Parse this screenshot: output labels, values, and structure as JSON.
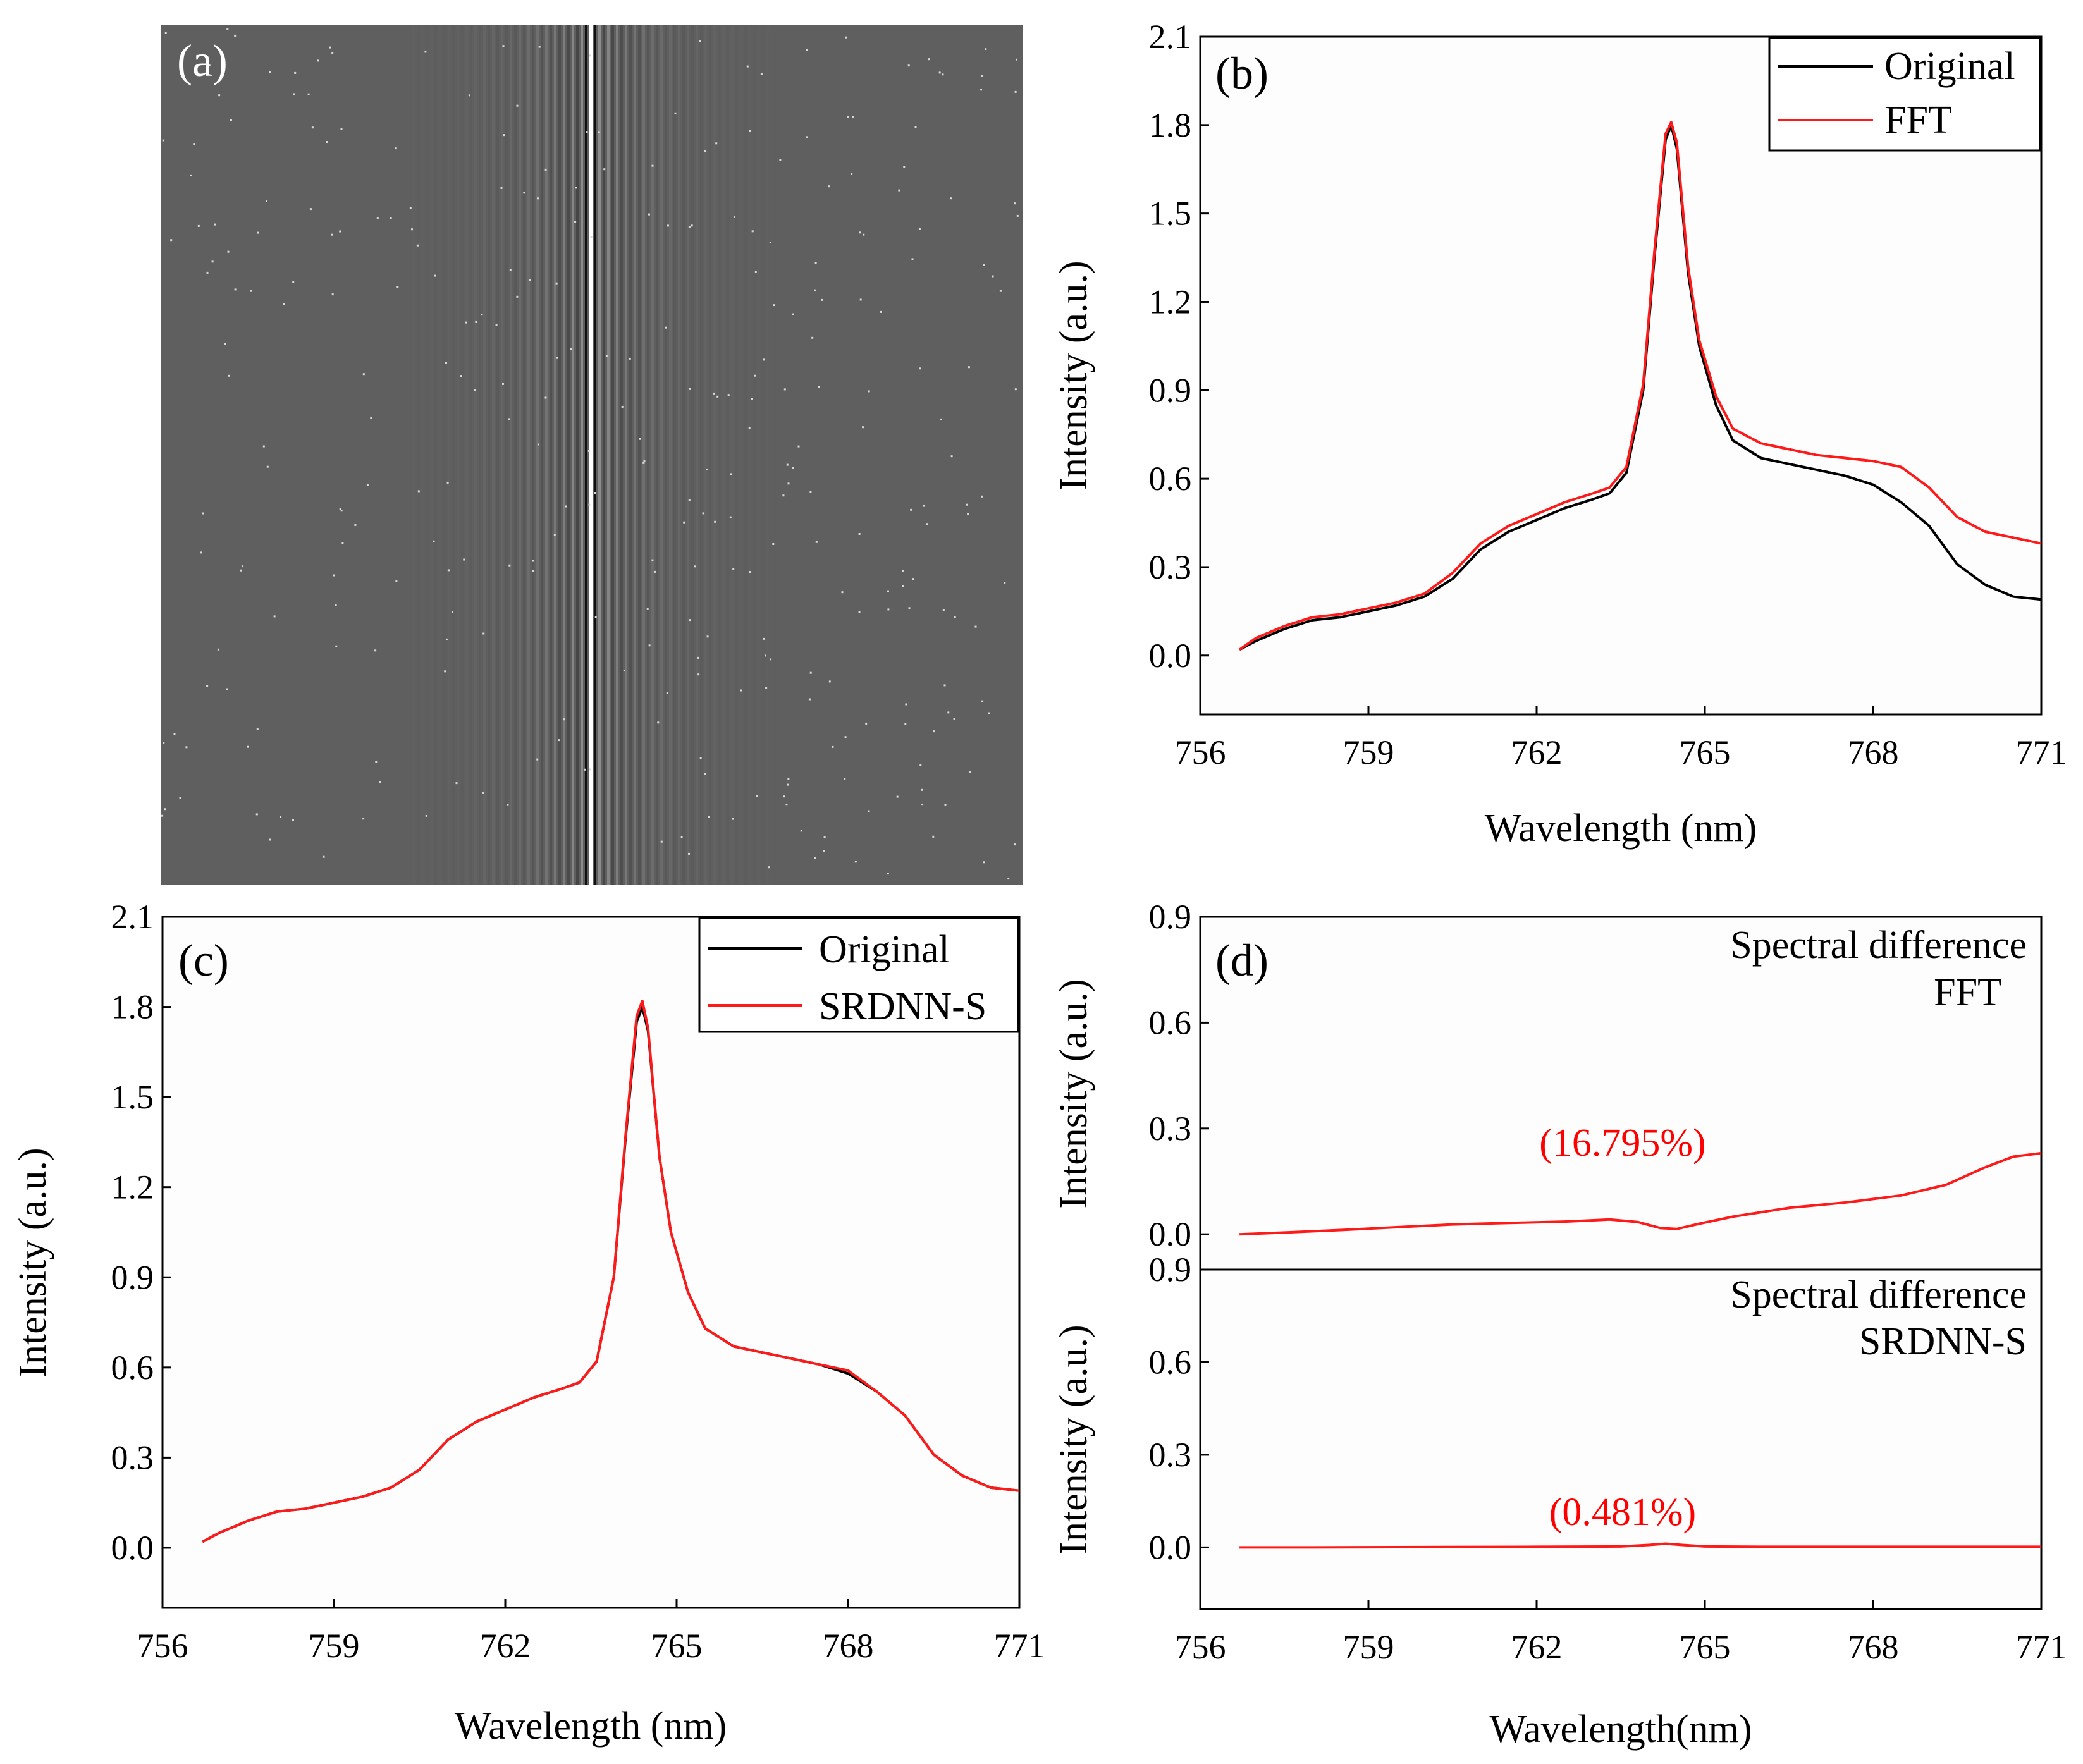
{
  "figure": {
    "panels": [
      "(a)",
      "(b)",
      "(c)",
      "(d)"
    ]
  },
  "colors": {
    "original": "#000000",
    "processed": "#ff1a1a",
    "image_background": "#5f5f5f"
  },
  "chart_data": [
    {
      "id": "a",
      "type": "image",
      "label": "(a)",
      "description_hidden": true
    },
    {
      "id": "b",
      "type": "line",
      "label": "(b)",
      "xlabel": "Wavelength (nm)",
      "ylabel": "Intensity (a.u.)",
      "xlim": [
        756,
        771
      ],
      "ylim": [
        -0.2,
        2.1
      ],
      "xticks": [
        756,
        759,
        762,
        765,
        768,
        771
      ],
      "yticks": [
        0.0,
        0.3,
        0.6,
        0.9,
        1.2,
        1.5,
        1.8,
        2.1
      ],
      "legend": [
        "Original",
        "FFT"
      ],
      "series": [
        {
          "name": "Original",
          "x": [
            756.7,
            757.0,
            757.5,
            758.0,
            758.5,
            759.0,
            759.5,
            760.0,
            760.5,
            761.0,
            761.5,
            762.0,
            762.5,
            763.0,
            763.3,
            763.6,
            763.9,
            764.1,
            764.3,
            764.4,
            764.5,
            764.7,
            764.9,
            765.2,
            765.5,
            766.0,
            766.5,
            767.0,
            767.5,
            768.0,
            768.5,
            769.0,
            769.5,
            770.0,
            770.5,
            771.0
          ],
          "values": [
            0.02,
            0.05,
            0.09,
            0.12,
            0.13,
            0.15,
            0.17,
            0.2,
            0.26,
            0.36,
            0.42,
            0.46,
            0.5,
            0.53,
            0.55,
            0.62,
            0.9,
            1.35,
            1.75,
            1.8,
            1.72,
            1.3,
            1.05,
            0.85,
            0.73,
            0.67,
            0.65,
            0.63,
            0.61,
            0.58,
            0.52,
            0.44,
            0.31,
            0.24,
            0.2,
            0.19
          ]
        },
        {
          "name": "FFT",
          "x": [
            756.7,
            757.0,
            757.5,
            758.0,
            758.5,
            759.0,
            759.5,
            760.0,
            760.5,
            761.0,
            761.5,
            762.0,
            762.5,
            763.0,
            763.3,
            763.6,
            763.9,
            764.1,
            764.3,
            764.4,
            764.5,
            764.7,
            764.9,
            765.2,
            765.5,
            766.0,
            766.5,
            767.0,
            767.5,
            768.0,
            768.5,
            769.0,
            769.5,
            770.0,
            770.5,
            771.0
          ],
          "values": [
            0.02,
            0.06,
            0.1,
            0.13,
            0.14,
            0.16,
            0.18,
            0.21,
            0.28,
            0.38,
            0.44,
            0.48,
            0.52,
            0.55,
            0.57,
            0.64,
            0.92,
            1.37,
            1.77,
            1.81,
            1.74,
            1.32,
            1.07,
            0.88,
            0.77,
            0.72,
            0.7,
            0.68,
            0.67,
            0.66,
            0.64,
            0.57,
            0.47,
            0.42,
            0.4,
            0.38
          ]
        }
      ]
    },
    {
      "id": "c",
      "type": "line",
      "label": "(c)",
      "xlabel": "Wavelength (nm)",
      "ylabel": "Intensity (a.u.)",
      "xlim": [
        756,
        771
      ],
      "ylim": [
        -0.2,
        2.1
      ],
      "xticks": [
        756,
        759,
        762,
        765,
        768,
        771
      ],
      "yticks": [
        0.0,
        0.3,
        0.6,
        0.9,
        1.2,
        1.5,
        1.8,
        2.1
      ],
      "legend": [
        "Original",
        "SRDNN-S"
      ],
      "series": [
        {
          "name": "Original",
          "x": [
            756.7,
            757.0,
            757.5,
            758.0,
            758.5,
            759.0,
            759.5,
            760.0,
            760.5,
            761.0,
            761.5,
            762.0,
            762.5,
            763.0,
            763.3,
            763.6,
            763.9,
            764.1,
            764.3,
            764.4,
            764.5,
            764.7,
            764.9,
            765.2,
            765.5,
            766.0,
            766.5,
            767.0,
            767.5,
            768.0,
            768.5,
            769.0,
            769.5,
            770.0,
            770.5,
            771.0
          ],
          "values": [
            0.02,
            0.05,
            0.09,
            0.12,
            0.13,
            0.15,
            0.17,
            0.2,
            0.26,
            0.36,
            0.42,
            0.46,
            0.5,
            0.53,
            0.55,
            0.62,
            0.9,
            1.35,
            1.75,
            1.8,
            1.72,
            1.3,
            1.05,
            0.85,
            0.73,
            0.67,
            0.65,
            0.63,
            0.61,
            0.58,
            0.52,
            0.44,
            0.31,
            0.24,
            0.2,
            0.19
          ]
        },
        {
          "name": "SRDNN-S",
          "x": [
            756.7,
            757.0,
            757.5,
            758.0,
            758.5,
            759.0,
            759.5,
            760.0,
            760.5,
            761.0,
            761.5,
            762.0,
            762.5,
            763.0,
            763.3,
            763.6,
            763.9,
            764.1,
            764.3,
            764.4,
            764.5,
            764.7,
            764.9,
            765.2,
            765.5,
            766.0,
            766.5,
            767.0,
            767.5,
            768.0,
            768.5,
            769.0,
            769.5,
            770.0,
            770.5,
            771.0
          ],
          "values": [
            0.02,
            0.05,
            0.09,
            0.12,
            0.13,
            0.15,
            0.17,
            0.2,
            0.26,
            0.36,
            0.42,
            0.46,
            0.5,
            0.53,
            0.55,
            0.62,
            0.9,
            1.36,
            1.77,
            1.82,
            1.73,
            1.3,
            1.05,
            0.85,
            0.73,
            0.67,
            0.65,
            0.63,
            0.61,
            0.59,
            0.52,
            0.44,
            0.31,
            0.24,
            0.2,
            0.19
          ]
        }
      ]
    },
    {
      "id": "d_top",
      "type": "line",
      "label": "(d)",
      "xlabel": "",
      "ylabel": "Intensity (a.u.)",
      "xlim": [
        756,
        771
      ],
      "ylim": [
        -0.1,
        0.9
      ],
      "yticks": [
        0.0,
        0.3,
        0.6,
        0.9
      ],
      "annotation_lines": [
        "Spectral difference",
        "FFT"
      ],
      "percent": "(16.795%)",
      "series": [
        {
          "name": "FFT difference",
          "x": [
            756.7,
            757.5,
            758.5,
            759.5,
            760.5,
            761.5,
            762.5,
            763.3,
            763.8,
            764.2,
            764.5,
            764.9,
            765.5,
            766.5,
            767.5,
            768.5,
            769.3,
            770.0,
            770.5,
            771.0
          ],
          "values": [
            0.0,
            0.005,
            0.012,
            0.02,
            0.028,
            0.032,
            0.036,
            0.042,
            0.035,
            0.018,
            0.015,
            0.03,
            0.05,
            0.075,
            0.09,
            0.11,
            0.14,
            0.19,
            0.22,
            0.23
          ]
        }
      ]
    },
    {
      "id": "d_bottom",
      "type": "line",
      "label": "",
      "xlabel": "Wavelength(nm)",
      "ylabel": "Intensity (a.u.)",
      "xlim": [
        756,
        771
      ],
      "ylim": [
        -0.2,
        0.9
      ],
      "xticks": [
        756,
        759,
        762,
        765,
        768,
        771
      ],
      "yticks": [
        0.0,
        0.3,
        0.6,
        0.9
      ],
      "annotation_lines": [
        "Spectral difference",
        "SRDNN-S"
      ],
      "percent": "(0.481%)",
      "series": [
        {
          "name": "SRDNN-S difference",
          "x": [
            756.7,
            758.0,
            760.0,
            762.0,
            763.5,
            764.0,
            764.3,
            764.6,
            765.0,
            766.0,
            768.0,
            770.0,
            771.0
          ],
          "values": [
            0.0,
            0.0,
            0.001,
            0.002,
            0.003,
            0.008,
            0.012,
            0.008,
            0.003,
            0.002,
            0.002,
            0.002,
            0.002
          ]
        }
      ]
    }
  ]
}
